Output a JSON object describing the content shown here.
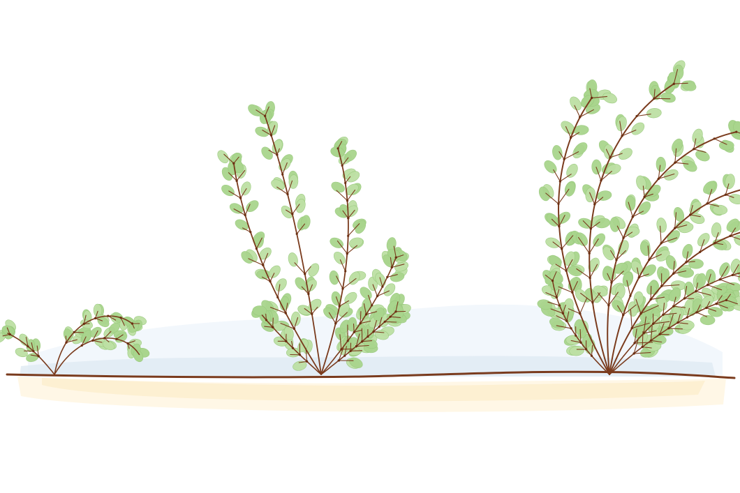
{
  "illustration": {
    "subject": "three-plant-growth-stages",
    "plant_count": 3,
    "colors": {
      "background": "#ffffff",
      "sky_wash": "#eef4fb",
      "sky_wash_deep": "#dfeaf3",
      "sand": "#fdf0d2",
      "sand_light": "#fff7e6",
      "ground_line": "#7a3b1d",
      "stem": "#7a3b1d",
      "leaf": "#a9d58d",
      "leaf_light": "#bde0a4",
      "leaf_edge": "#98c97c",
      "node": "#6b2f12"
    }
  }
}
